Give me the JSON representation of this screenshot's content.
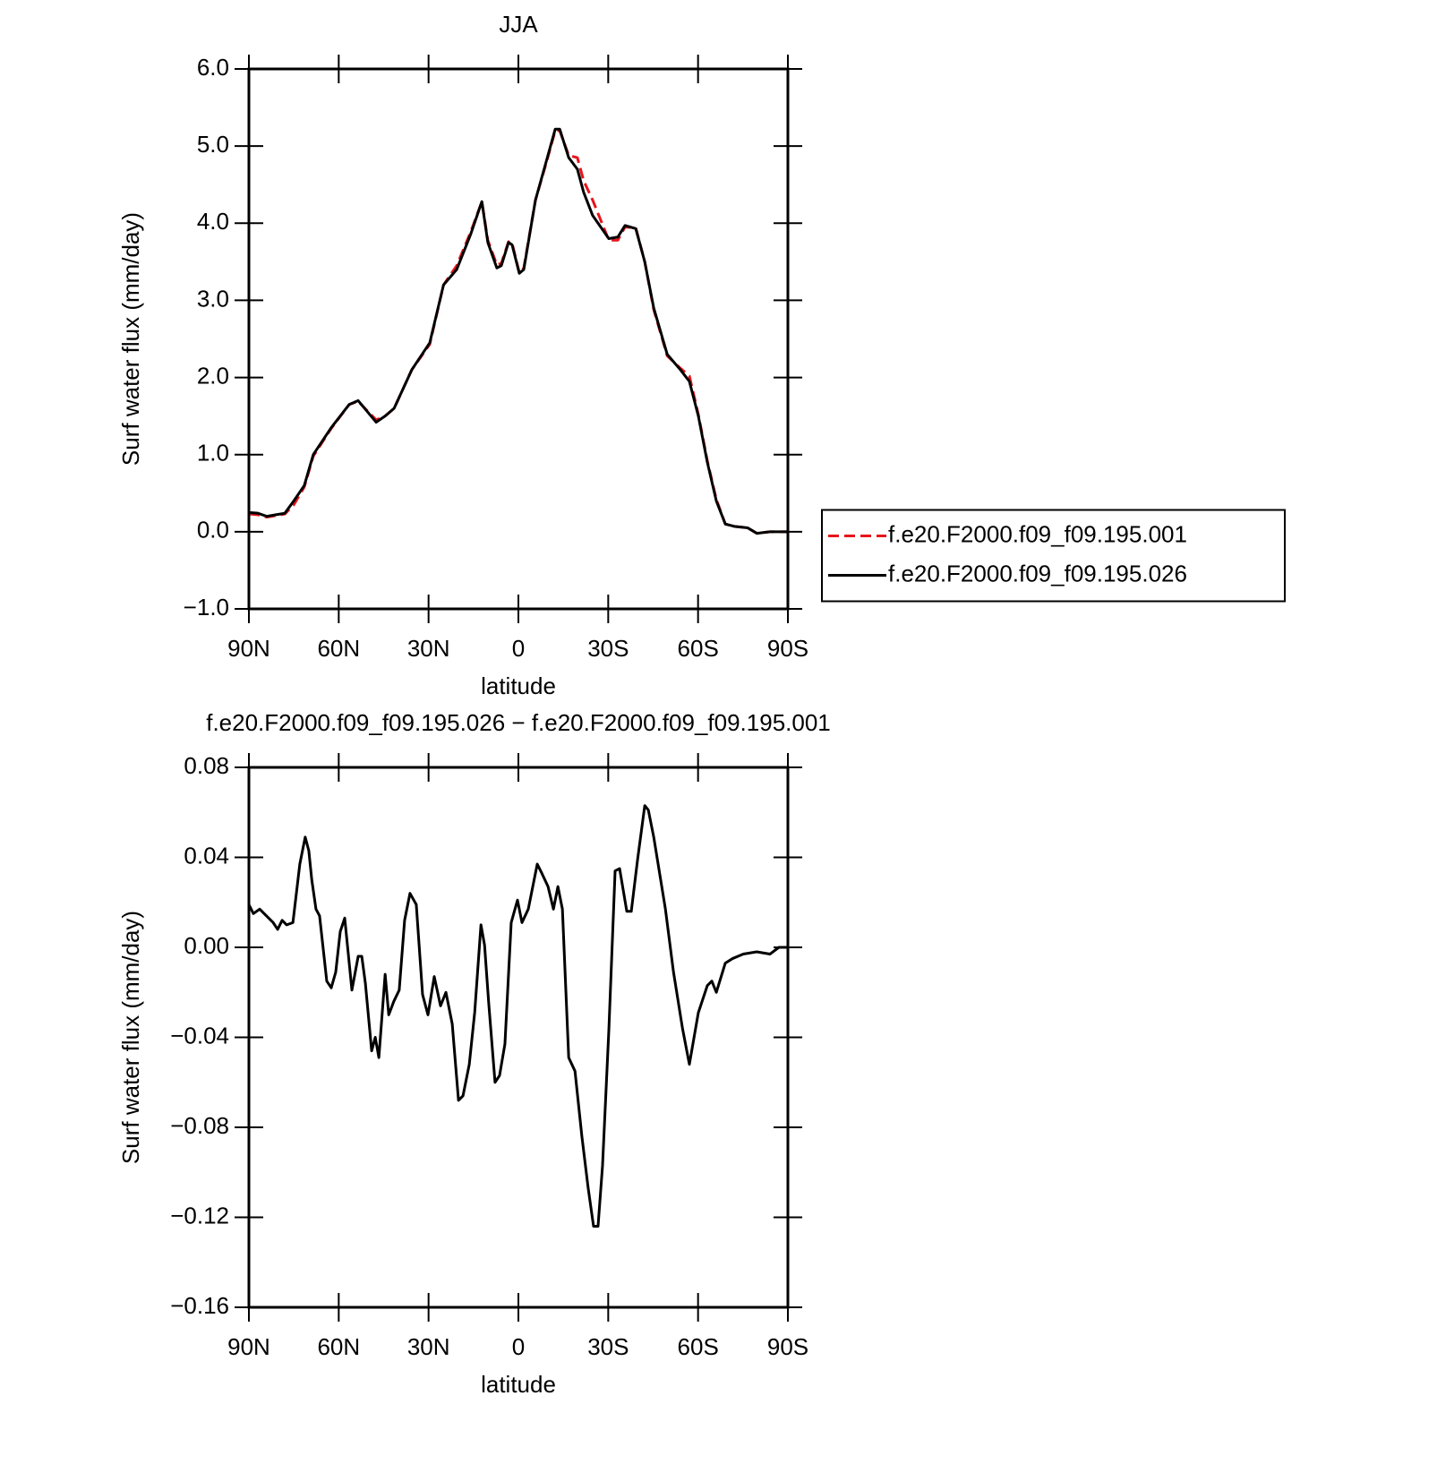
{
  "chart_data": [
    {
      "type": "line",
      "title": "JJA",
      "xlabel": "latitude",
      "ylabel": "Surf water flux (mm/day)",
      "x": [
        90,
        87,
        84,
        81,
        78,
        75,
        71.5,
        68.5,
        62.5,
        56.5,
        53.5,
        47.5,
        44.5,
        41.5,
        35.6,
        29.6,
        25,
        20.6,
        16,
        12.2,
        10.2,
        7.2,
        5.7,
        3.3,
        2.1,
        -0.3,
        -1.8,
        -5.7,
        -9.3,
        -12.3,
        -13.8,
        -16.8,
        -19.7,
        -21.8,
        -24.8,
        -30.2,
        -33.2,
        -35.6,
        -39.2,
        -42.2,
        -45.2,
        -49.7,
        -54.1,
        -57.1,
        -60.1,
        -63.1,
        -66.1,
        -69.1,
        -72.1,
        -76.6,
        -79.6,
        -84,
        -90
      ],
      "series": [
        {
          "name": "f.e20.F2000.f09_f09.195.001",
          "color": "#e8141c",
          "style": "dashed",
          "values": [
            0.23,
            0.22,
            0.19,
            0.21,
            0.23,
            0.35,
            0.58,
            0.98,
            1.34,
            1.65,
            1.69,
            1.45,
            1.5,
            1.6,
            2.1,
            2.43,
            3.2,
            3.45,
            3.88,
            4.28,
            3.78,
            3.46,
            3.48,
            3.76,
            3.74,
            3.36,
            3.42,
            4.3,
            4.78,
            5.2,
            5.2,
            4.88,
            4.85,
            4.55,
            4.3,
            3.78,
            3.78,
            3.95,
            3.94,
            3.5,
            2.88,
            2.28,
            2.12,
            2.02,
            1.52,
            0.92,
            0.42,
            0.1,
            0.07,
            0.05,
            -0.02,
            0.0,
            0.0
          ]
        },
        {
          "name": "f.e20.F2000.f09_f09.195.026",
          "color": "#000000",
          "style": "solid",
          "values": [
            0.25,
            0.24,
            0.2,
            0.22,
            0.24,
            0.4,
            0.6,
            1.0,
            1.35,
            1.65,
            1.7,
            1.42,
            1.5,
            1.6,
            2.1,
            2.45,
            3.2,
            3.4,
            3.85,
            4.28,
            3.75,
            3.42,
            3.45,
            3.75,
            3.72,
            3.35,
            3.4,
            4.3,
            4.8,
            5.22,
            5.22,
            4.85,
            4.7,
            4.4,
            4.1,
            3.8,
            3.82,
            3.97,
            3.93,
            3.5,
            2.9,
            2.3,
            2.1,
            1.95,
            1.5,
            0.9,
            0.4,
            0.1,
            0.07,
            0.05,
            -0.02,
            0.0,
            0.0
          ]
        }
      ],
      "xlim": [
        90,
        -90
      ],
      "xticks": [
        {
          "value": 90,
          "label": "90N"
        },
        {
          "value": 60,
          "label": "60N"
        },
        {
          "value": 30,
          "label": "30N"
        },
        0,
        {
          "value": -30,
          "label": "30S"
        },
        {
          "value": -60,
          "label": "60S"
        },
        {
          "value": -90,
          "label": "90S"
        }
      ],
      "ylim": [
        -1,
        6
      ],
      "yticks": [
        {
          "value": 6,
          "label": "6.0"
        },
        {
          "value": 5,
          "label": "5.0"
        },
        {
          "value": 4,
          "label": "4.0"
        },
        {
          "value": 3,
          "label": "3.0"
        },
        {
          "value": 2,
          "label": "2.0"
        },
        {
          "value": 1,
          "label": "1.0"
        },
        {
          "value": 0,
          "label": "0.0"
        },
        {
          "value": -1,
          "label": "−1.0"
        }
      ],
      "legend": "right"
    },
    {
      "type": "line",
      "title": "f.e20.F2000.f09_f09.195.026 − f.e20.F2000.f09_f09.195.001",
      "xlabel": "latitude",
      "ylabel": "Surf water flux (mm/day)",
      "x": [
        90,
        88.5,
        86.4,
        83.4,
        81.9,
        80.4,
        78.9,
        77.4,
        75.3,
        73,
        71.2,
        70,
        69,
        67.6,
        66.4,
        64,
        62.5,
        61,
        59.5,
        58,
        56.5,
        55.6,
        53.5,
        52.3,
        51.1,
        49,
        47.8,
        46.6,
        44.5,
        43.3,
        41.6,
        39.8,
        38,
        36.2,
        34.1,
        32,
        30.2,
        28.1,
        26,
        24.2,
        22.1,
        20,
        18.5,
        16.4,
        14.6,
        12.5,
        11.3,
        9.9,
        7.8,
        6.3,
        4.5,
        2.4,
        0.3,
        -1.2,
        -3.3,
        -6.3,
        -7.8,
        -9.9,
        -11.7,
        -13.2,
        -14.7,
        -16.8,
        -18.9,
        -21.2,
        -23.3,
        -25.1,
        -26.6,
        -28.1,
        -30.2,
        -32.3,
        -33.8,
        -36.2,
        -37.7,
        -39.8,
        -42.2,
        -43.4,
        -45.2,
        -49.1,
        -51.8,
        -54.8,
        -57.1,
        -60.1,
        -63.1,
        -64.6,
        -66.1,
        -69.1,
        -71.5,
        -75.1,
        -79.6,
        -84,
        -87,
        -90
      ],
      "series": [
        {
          "color": "#000000",
          "style": "solid",
          "values": [
            0.019,
            0.015,
            0.017,
            0.013,
            0.011,
            0.008,
            0.012,
            0.01,
            0.011,
            0.037,
            0.049,
            0.043,
            0.03,
            0.017,
            0.014,
            -0.015,
            -0.018,
            -0.011,
            0.007,
            0.013,
            -0.007,
            -0.019,
            -0.004,
            -0.004,
            -0.016,
            -0.046,
            -0.04,
            -0.049,
            -0.012,
            -0.03,
            -0.024,
            -0.019,
            0.012,
            0.024,
            0.019,
            -0.021,
            -0.03,
            -0.013,
            -0.026,
            -0.02,
            -0.034,
            -0.068,
            -0.066,
            -0.052,
            -0.029,
            0.01,
            0.001,
            -0.025,
            -0.06,
            -0.057,
            -0.043,
            0.011,
            0.021,
            0.011,
            0.017,
            0.037,
            0.033,
            0.027,
            0.017,
            0.027,
            0.017,
            -0.049,
            -0.055,
            -0.084,
            -0.107,
            -0.124,
            -0.124,
            -0.097,
            -0.037,
            0.034,
            0.035,
            0.016,
            0.016,
            0.039,
            0.063,
            0.061,
            0.049,
            0.017,
            -0.011,
            -0.036,
            -0.052,
            -0.029,
            -0.017,
            -0.015,
            -0.02,
            -0.007,
            -0.005,
            -0.003,
            -0.002,
            -0.003,
            0.0,
            0.0
          ]
        }
      ],
      "xlim": [
        90,
        -90
      ],
      "xticks": [
        {
          "value": 90,
          "label": "90N"
        },
        {
          "value": 60,
          "label": "60N"
        },
        {
          "value": 30,
          "label": "30N"
        },
        0,
        {
          "value": -30,
          "label": "30S"
        },
        {
          "value": -60,
          "label": "60S"
        },
        {
          "value": -90,
          "label": "90S"
        }
      ],
      "ylim": [
        -0.16,
        0.08
      ],
      "yticks": [
        0.08,
        0.04,
        {
          "value": 0,
          "label": "0.00"
        },
        {
          "value": -0.04,
          "label": "−0.04"
        },
        {
          "value": -0.08,
          "label": "−0.08"
        },
        {
          "value": -0.12,
          "label": "−0.12"
        },
        {
          "value": -0.16,
          "label": "−0.16"
        }
      ]
    }
  ]
}
